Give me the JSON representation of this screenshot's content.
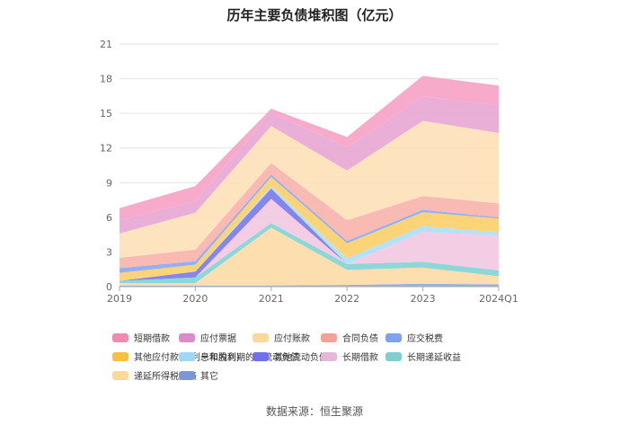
{
  "chart_data": {
    "type": "area",
    "stacked": true,
    "title": "历年主要负债堆积图（亿元）",
    "x": [
      "2019",
      "2020",
      "2021",
      "2022",
      "2023",
      "2024Q1"
    ],
    "yticks": [
      "0",
      "3",
      "6",
      "9",
      "12",
      "15",
      "18",
      "21"
    ],
    "ylim": [
      0,
      21
    ],
    "grid": true,
    "legend_position": "bottom",
    "series": [
      {
        "name": "其它",
        "color": "#8FAADC",
        "values": [
          0.1,
          0.1,
          0.1,
          0.15,
          0.25,
          0.2
        ]
      },
      {
        "name": "递延所得税负债",
        "color": "#FDDCA8",
        "values": [
          0.2,
          0.2,
          5.0,
          1.3,
          1.4,
          0.7
        ]
      },
      {
        "name": "长期递延收益",
        "color": "#82D4D4",
        "values": [
          0.2,
          0.5,
          0.4,
          0.5,
          0.5,
          0.5
        ]
      },
      {
        "name": "长期借款",
        "color": "#F2C9E2",
        "values": [
          0.0,
          0.0,
          2.1,
          0.0,
          2.6,
          3.0
        ]
      },
      {
        "name": "其他流动负债",
        "color": "#7B7BEA",
        "values": [
          0.0,
          0.5,
          0.9,
          0.0,
          0.0,
          0.0
        ]
      },
      {
        "name": "一年内到期的非流动负债",
        "color": "#AEE0F7",
        "values": [
          0.0,
          0.0,
          0.2,
          0.5,
          0.5,
          0.3
        ]
      },
      {
        "name": "其他应付款(含利息和股利)",
        "color": "#FBD06D",
        "values": [
          0.7,
          0.6,
          0.8,
          1.3,
          1.2,
          1.2
        ]
      },
      {
        "name": "应交税费",
        "color": "#8CA8F2",
        "values": [
          0.4,
          0.3,
          0.2,
          0.2,
          0.2,
          0.1
        ]
      },
      {
        "name": "合同负债",
        "color": "#F8B4AC",
        "values": [
          0.9,
          1.0,
          1.0,
          1.8,
          1.2,
          1.2
        ]
      },
      {
        "name": "应付账款",
        "color": "#FDE2B8",
        "values": [
          2.1,
          3.2,
          3.2,
          4.3,
          6.5,
          6.1
        ]
      },
      {
        "name": "应付票据",
        "color": "#E8A8D4",
        "values": [
          1.2,
          1.0,
          1.2,
          2.0,
          2.1,
          2.4
        ]
      },
      {
        "name": "短期借款",
        "color": "#F7A3C7",
        "values": [
          1.0,
          1.3,
          0.3,
          0.9,
          1.8,
          1.7
        ]
      }
    ]
  },
  "legend": [
    {
      "name": "短期借款",
      "color": "#F288B4"
    },
    {
      "name": "应付票据",
      "color": "#D98BCB"
    },
    {
      "name": "应付账款",
      "color": "#FCD899"
    },
    {
      "name": "合同负债",
      "color": "#F6A197"
    },
    {
      "name": "应交税费",
      "color": "#7FA2F0"
    },
    {
      "name": "其他应付款(含利息和股利)",
      "color": "#F8C03E"
    },
    {
      "name": "一年内到期的非流动负债",
      "color": "#9ED8F5"
    },
    {
      "name": "其他流动负债",
      "color": "#7070E8"
    },
    {
      "name": "长期借款",
      "color": "#E8B6DA"
    },
    {
      "name": "长期递延收益",
      "color": "#7DCFD0"
    },
    {
      "name": "递延所得税负债",
      "color": "#FCD899"
    },
    {
      "name": "其它",
      "color": "#7C99CF"
    }
  ],
  "source": "数据来源：恒生聚源"
}
